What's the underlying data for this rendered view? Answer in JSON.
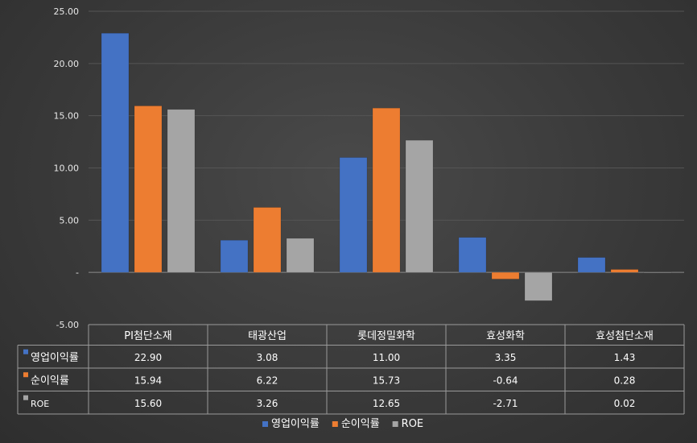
{
  "chart_data": {
    "type": "bar",
    "categories": [
      "PI첨단소재",
      "태광산업",
      "롯데정밀화학",
      "효성화학",
      "효성첨단소재"
    ],
    "series": [
      {
        "name": "영업이익률",
        "values": [
          22.9,
          3.08,
          11.0,
          3.35,
          1.43
        ],
        "labels": [
          "22.90",
          "3.08",
          "11.00",
          "3.35",
          "1.43"
        ],
        "color": "#4472c4"
      },
      {
        "name": "순이익률",
        "values": [
          15.94,
          6.22,
          15.73,
          -0.64,
          0.28
        ],
        "labels": [
          "15.94",
          "6.22",
          "15.73",
          "-0.64",
          "0.28"
        ],
        "color": "#ed7d31"
      },
      {
        "name": "ROE",
        "values": [
          15.6,
          3.26,
          12.65,
          -2.71,
          0.02
        ],
        "labels": [
          "15.60",
          "3.26",
          "12.65",
          "-2.71",
          "0.02"
        ],
        "color": "#a5a5a5"
      }
    ],
    "ylim": [
      -5,
      25
    ],
    "yticks": [
      25,
      20,
      15,
      10,
      5,
      0,
      -5
    ],
    "ytick_labels": [
      "25.00",
      "20.00",
      "15.00",
      "10.00",
      "5.00",
      "-",
      "-5.00"
    ],
    "grid": true,
    "legend": "bottom",
    "data_table": true
  }
}
